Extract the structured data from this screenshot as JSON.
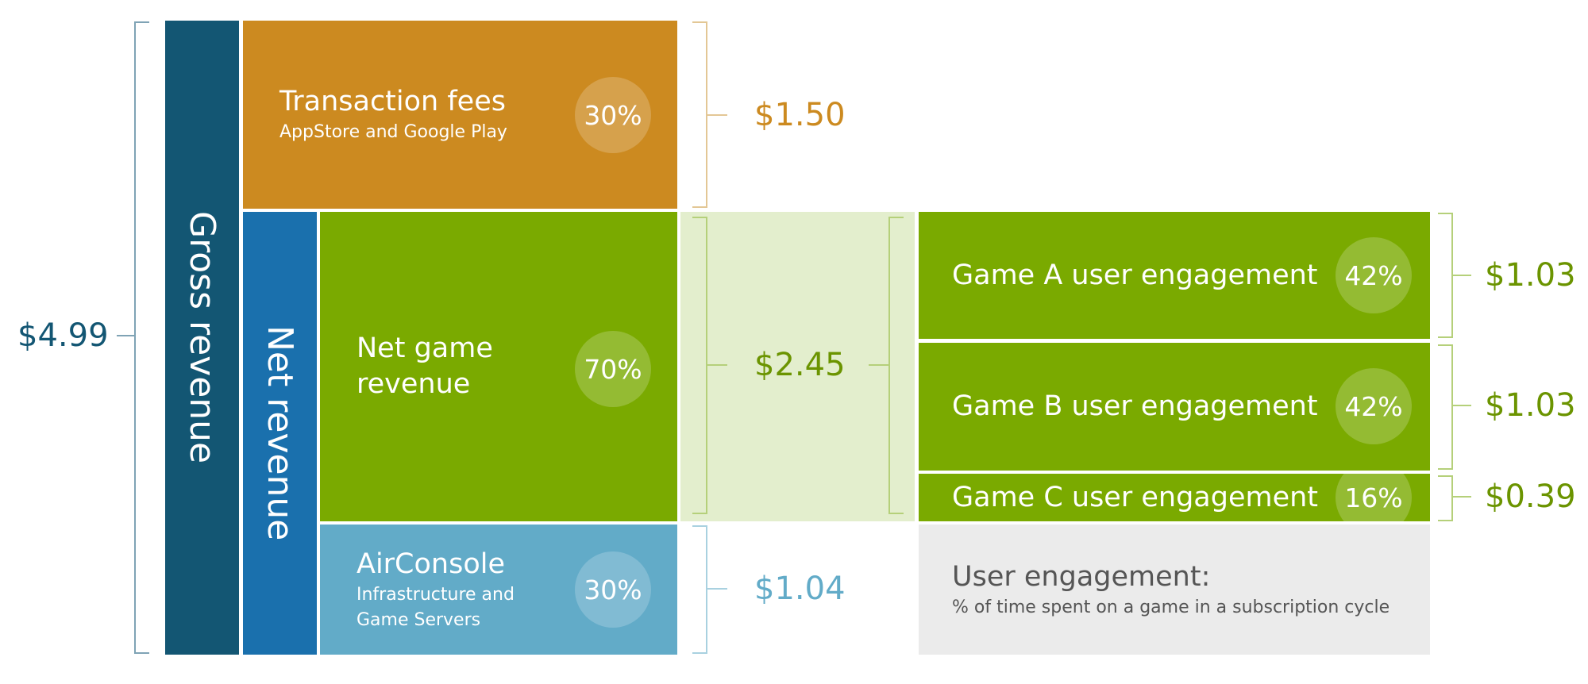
{
  "gross_revenue": {
    "label": "Gross revenue",
    "amount": "$4.99"
  },
  "net_revenue": {
    "label": "Net revenue"
  },
  "transaction_fees": {
    "title": "Transaction fees",
    "subtitle": "AppStore and Google Play",
    "percent": "30%",
    "amount": "$1.50"
  },
  "net_game_revenue": {
    "title": "Net game revenue",
    "percent": "70%",
    "amount": "$2.45"
  },
  "airconsole": {
    "title": "AirConsole",
    "subtitle": "Infrastructure and Game Servers",
    "percent": "30%",
    "amount": "$1.04"
  },
  "games": [
    {
      "title": "Game A user engagement",
      "percent": "42%",
      "amount": "$1.03"
    },
    {
      "title": "Game B user engagement",
      "percent": "42%",
      "amount": "$1.03"
    },
    {
      "title": "Game C user engagement",
      "percent": "16%",
      "amount": "$0.39"
    }
  ],
  "legend": {
    "title": "User engagement:",
    "subtitle": "% of time spent on a game in a subscription cycle"
  }
}
